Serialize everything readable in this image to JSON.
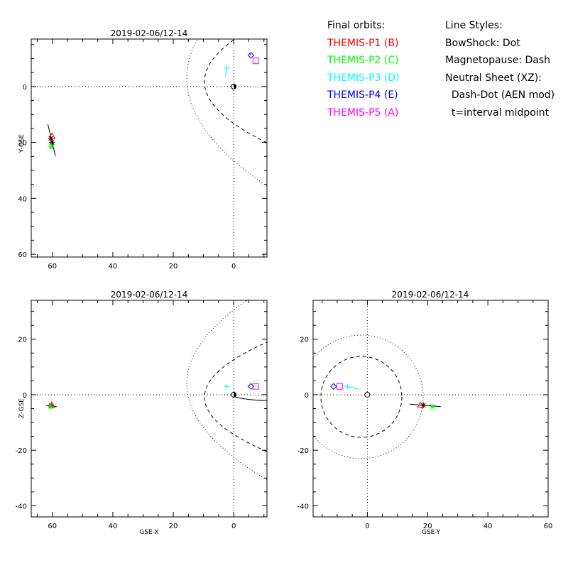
{
  "legend": {
    "orbits_title": "Final orbits:",
    "styles_title": "Line Styles:",
    "probes": [
      {
        "label": "THEMIS-P1 (B)",
        "color": "#ff0000"
      },
      {
        "label": "THEMIS-P2 (C)",
        "color": "#00ff00"
      },
      {
        "label": "THEMIS-P3 (D)",
        "color": "#00ffff"
      },
      {
        "label": "THEMIS-P4 (E)",
        "color": "#0000ff"
      },
      {
        "label": "THEMIS-P5 (A)",
        "color": "#ff00ff"
      }
    ],
    "styles": [
      "BowShock: Dot",
      "Magnetopause: Dash",
      "Neutral Sheet (XZ):",
      "  Dash-Dot (AEN mod)",
      "  t=interval midpoint"
    ]
  },
  "chart_data": [
    {
      "id": "xy",
      "type": "scatter",
      "title": "2019-02-06/12-14",
      "xlabel": "",
      "ylabel": "Y-GSE",
      "xlim": [
        67,
        -11
      ],
      "ylim": [
        61,
        -17
      ],
      "xticks": [
        60,
        40,
        20,
        0
      ],
      "yticks": [
        0,
        20,
        40,
        60
      ],
      "ticklabels_x": [
        "60",
        "40",
        "20",
        "0"
      ],
      "ticklabels_y": [
        "0",
        "20",
        "40",
        "60"
      ],
      "probes": [
        {
          "name": "P1",
          "marker": "triangle",
          "color": "#ff0000",
          "x": 60.1,
          "y": 17.6
        },
        {
          "name": "P2",
          "marker": "asterisk",
          "color": "#00ff00",
          "x": 60.4,
          "y": 21.6
        },
        {
          "name": "P3",
          "marker": "plus",
          "color": "#00ffff",
          "x": 2.3,
          "y": -6.6
        },
        {
          "name": "P4",
          "marker": "diamond",
          "color": "#0000ff",
          "x": -5.7,
          "y": -11.2
        },
        {
          "name": "P5",
          "marker": "square",
          "color": "#ff00ff",
          "x": -7.3,
          "y": -9.2
        }
      ],
      "tracks": [
        {
          "color": "#000000",
          "points": [
            [
              61.5,
              13.5
            ],
            [
              59.0,
              24.8
            ]
          ]
        },
        {
          "color": "#00ffff",
          "points": [
            [
              2.3,
              -6.6
            ],
            [
              2.8,
              -3.6
            ]
          ]
        },
        {
          "color": "#0000ff",
          "points": [
            [
              -5.7,
              -11.2
            ],
            [
              -5.2,
              -12.0
            ]
          ]
        }
      ],
      "extra_marks": [
        {
          "marker": "asterisk",
          "color": "#000000",
          "x": 60.5,
          "y": 18.5
        },
        {
          "marker": "asterisk",
          "color": "#000000",
          "x": 60.1,
          "y": 20.0
        }
      ]
    },
    {
      "id": "xz",
      "type": "scatter",
      "title": "2019-02-06/12-14",
      "xlabel": "GSE-X",
      "ylabel": "Z-GSE",
      "xlim": [
        67,
        -11
      ],
      "ylim": [
        -44,
        34
      ],
      "xticks": [
        60,
        40,
        20,
        0
      ],
      "yticks": [
        -40,
        -20,
        0,
        20
      ],
      "ticklabels_x": [
        "60",
        "40",
        "20",
        "0"
      ],
      "ticklabels_y": [
        "-40",
        "-20",
        "0",
        "20"
      ],
      "probes": [
        {
          "name": "P1",
          "marker": "triangle",
          "color": "#ff0000",
          "x": 60.2,
          "y": -3.6
        },
        {
          "name": "P2",
          "marker": "asterisk",
          "color": "#00ff00",
          "x": 60.5,
          "y": -4.3
        },
        {
          "name": "P3",
          "marker": "plus",
          "color": "#00ffff",
          "x": 2.3,
          "y": 2.9
        },
        {
          "name": "P4",
          "marker": "diamond",
          "color": "#0000ff",
          "x": -5.7,
          "y": 3.0
        },
        {
          "name": "P5",
          "marker": "square",
          "color": "#ff00ff",
          "x": -7.3,
          "y": 3.0
        }
      ],
      "tracks": [
        {
          "color": "#000000",
          "points": [
            [
              62.2,
              -3.8
            ],
            [
              58.6,
              -4.3
            ]
          ]
        }
      ],
      "extra_marks": [
        {
          "marker": "asterisk",
          "color": "#000000",
          "x": 60.4,
          "y": -3.9
        }
      ]
    },
    {
      "id": "yz",
      "type": "scatter",
      "title": "2019-02-06/12-14",
      "xlabel": "GSE-Y",
      "ylabel": "",
      "xlim": [
        -18,
        60
      ],
      "ylim": [
        -44,
        34
      ],
      "xticks": [
        0,
        20,
        40,
        60
      ],
      "yticks": [
        -40,
        -20,
        0,
        20
      ],
      "ticklabels_x": [
        "0",
        "20",
        "40",
        "60"
      ],
      "ticklabels_y": [
        "-40",
        "-20",
        "0",
        "20"
      ],
      "probes": [
        {
          "name": "P1",
          "marker": "triangle",
          "color": "#ff0000",
          "x": 17.6,
          "y": -3.6
        },
        {
          "name": "P2",
          "marker": "asterisk",
          "color": "#00ff00",
          "x": 21.6,
          "y": -4.3
        },
        {
          "name": "P3",
          "marker": "plus",
          "color": "#00ffff",
          "x": -6.6,
          "y": 2.9
        },
        {
          "name": "P4",
          "marker": "diamond",
          "color": "#0000ff",
          "x": -11.2,
          "y": 3.0
        },
        {
          "name": "P5",
          "marker": "square",
          "color": "#ff00ff",
          "x": -9.2,
          "y": 3.0
        }
      ],
      "tracks": [
        {
          "color": "#000000",
          "points": [
            [
              14.0,
              -3.4
            ],
            [
              24.4,
              -4.3
            ]
          ]
        },
        {
          "color": "#00ffff",
          "points": [
            [
              -6.6,
              2.9
            ],
            [
              -2.6,
              2.0
            ]
          ]
        }
      ],
      "extra_marks": [
        {
          "marker": "asterisk",
          "color": "#000000",
          "x": 18.6,
          "y": -3.8
        }
      ]
    }
  ]
}
